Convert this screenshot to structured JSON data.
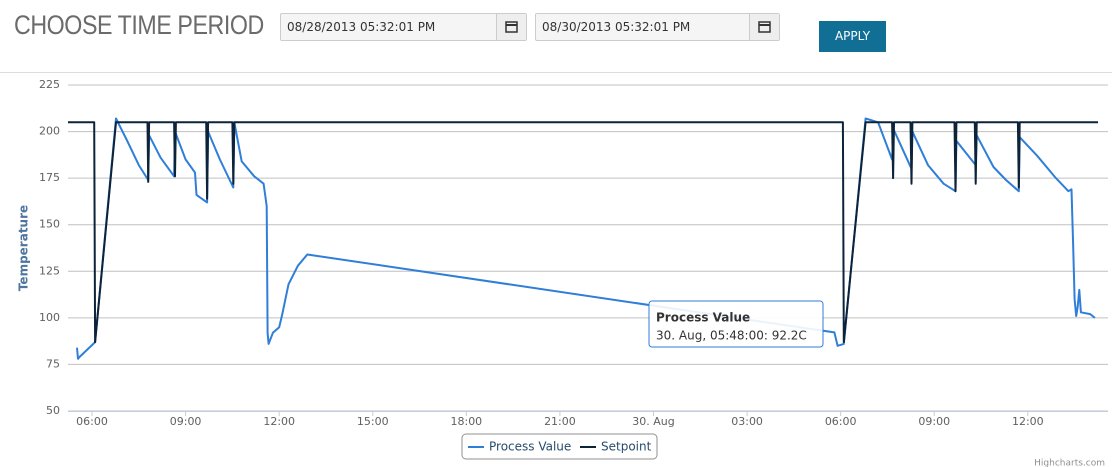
{
  "header": {
    "title": "CHOOSE TIME PERIOD",
    "start": "08/28/2013 05:32:01 PM",
    "end": "08/30/2013 05:32:01 PM",
    "button": "APPLY"
  },
  "chart_data": {
    "type": "line",
    "y_label": "Temperature",
    "xlim": [
      5.23,
      38.57
    ],
    "ylim": [
      50,
      225
    ],
    "xticks": [
      {
        "value": 6,
        "label": "06:00"
      },
      {
        "value": 9,
        "label": "09:00"
      },
      {
        "value": 12,
        "label": "12:00"
      },
      {
        "value": 15,
        "label": "15:00"
      },
      {
        "value": 18,
        "label": "18:00"
      },
      {
        "value": 21,
        "label": "21:00"
      },
      {
        "value": 24,
        "label": "30. Aug"
      },
      {
        "value": 27,
        "label": "03:00"
      },
      {
        "value": 30,
        "label": "06:00"
      },
      {
        "value": 33,
        "label": "09:00"
      },
      {
        "value": 36,
        "label": "12:00"
      }
    ],
    "yticks": [
      50,
      75,
      100,
      125,
      150,
      175,
      200,
      225
    ],
    "grid": true,
    "series": [
      {
        "name": "Process Value",
        "color": "#2f7ed8",
        "x": [
          5.52,
          5.55,
          5.6,
          6.1,
          6.77,
          7.1,
          7.5,
          7.8,
          7.83,
          8.2,
          8.63,
          8.66,
          9.0,
          9.3,
          9.35,
          9.69,
          9.72,
          10.1,
          10.53,
          10.56,
          10.8,
          11.2,
          11.5,
          11.6,
          11.63,
          11.66,
          11.8,
          12.0,
          12.1,
          12.3,
          12.6,
          12.9,
          29.8,
          29.9,
          30.1,
          30.8,
          31.2,
          31.65,
          31.7,
          32.27,
          32.3,
          32.8,
          33.3,
          33.68,
          33.71,
          34.33,
          34.36,
          34.9,
          35.3,
          35.71,
          35.74,
          36.3,
          36.9,
          37.3,
          37.4,
          37.45,
          37.5,
          37.55,
          37.6,
          37.65,
          37.7,
          38.0,
          38.15
        ],
        "values": [
          84,
          78,
          79,
          87,
          207,
          196,
          182,
          174,
          198,
          186,
          176,
          200,
          185,
          178,
          166,
          162,
          200,
          185,
          170,
          205,
          184,
          176,
          172,
          160,
          92,
          86,
          92,
          95,
          102,
          118,
          128,
          134,
          92.2,
          85,
          86,
          207,
          205,
          185,
          201,
          180,
          200,
          182,
          172,
          168,
          195,
          182,
          198,
          181,
          174,
          168,
          197,
          187,
          175,
          168,
          169,
          140,
          110,
          101,
          106,
          115,
          103,
          102,
          100
        ]
      },
      {
        "name": "Setpoint",
        "color": "#0d233a",
        "x": [
          5.23,
          6.07,
          6.1,
          6.77,
          7.78,
          7.8,
          7.83,
          8.63,
          8.66,
          8.69,
          9.66,
          9.69,
          9.72,
          10.5,
          10.53,
          10.56,
          30.07,
          30.1,
          30.8,
          31.65,
          31.68,
          31.71,
          32.24,
          32.27,
          32.3,
          33.65,
          33.68,
          33.71,
          34.3,
          34.33,
          34.36,
          35.68,
          35.71,
          35.74,
          38.25
        ],
        "values": [
          205,
          205,
          87,
          205,
          205,
          173,
          205,
          205,
          176,
          205,
          205,
          164,
          205,
          205,
          172,
          205,
          205,
          87,
          205,
          205,
          175,
          205,
          205,
          172,
          205,
          205,
          168,
          205,
          205,
          172,
          205,
          205,
          170,
          205,
          205
        ]
      }
    ],
    "tooltip": {
      "series": "Process Value",
      "text": "30. Aug, 05:48:00: 92.2C"
    },
    "credits": "Highcharts.com"
  }
}
